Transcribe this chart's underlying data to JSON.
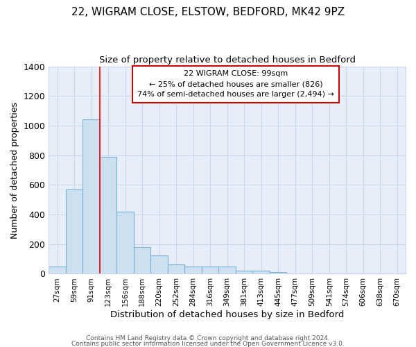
{
  "title1": "22, WIGRAM CLOSE, ELSTOW, BEDFORD, MK42 9PZ",
  "title2": "Size of property relative to detached houses in Bedford",
  "xlabel": "Distribution of detached houses by size in Bedford",
  "ylabel": "Number of detached properties",
  "bar_labels": [
    "27sqm",
    "59sqm",
    "91sqm",
    "123sqm",
    "156sqm",
    "188sqm",
    "220sqm",
    "252sqm",
    "284sqm",
    "316sqm",
    "349sqm",
    "381sqm",
    "413sqm",
    "445sqm",
    "477sqm",
    "509sqm",
    "541sqm",
    "574sqm",
    "606sqm",
    "638sqm",
    "670sqm"
  ],
  "bar_values": [
    50,
    570,
    1040,
    790,
    420,
    180,
    125,
    65,
    50,
    50,
    48,
    22,
    22,
    12,
    0,
    0,
    0,
    0,
    0,
    0,
    0
  ],
  "bar_color": "#cce0f0",
  "bar_edge_color": "#7ab0d4",
  "red_line_index": 2,
  "ylim": [
    0,
    1400
  ],
  "yticks": [
    0,
    200,
    400,
    600,
    800,
    1000,
    1200,
    1400
  ],
  "annotation_title": "22 WIGRAM CLOSE: 99sqm",
  "annotation_line1": "← 25% of detached houses are smaller (826)",
  "annotation_line2": "74% of semi-detached houses are larger (2,494) →",
  "footer1": "Contains HM Land Registry data © Crown copyright and database right 2024.",
  "footer2": "Contains public sector information licensed under the Open Government Licence v3.0.",
  "bg_color": "#ffffff",
  "plot_bg_color": "#e8eef8",
  "grid_color": "#c8d4e8"
}
